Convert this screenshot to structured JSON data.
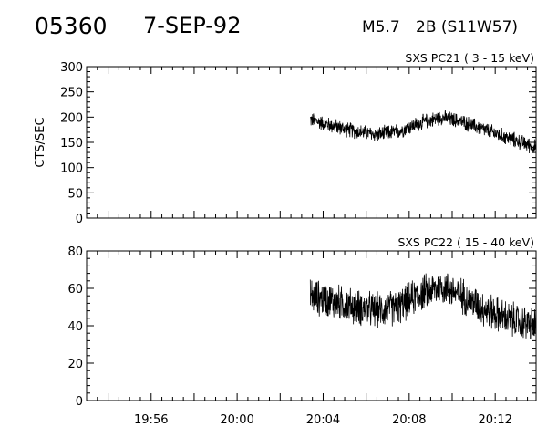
{
  "header": {
    "event_id": "05360",
    "date": "7-SEP-92",
    "goes_class": "M5.7",
    "flare": "2B (S11W57)"
  },
  "chart_data": [
    {
      "type": "line",
      "title": "SXS PC21  (  3 - 15 keV)",
      "ylabel": "CTS/SEC",
      "xlabel": "",
      "xlim": [
        "19:53",
        "20:13.9"
      ],
      "ylim": [
        0,
        300
      ],
      "yticks": [
        "0",
        "50",
        "100",
        "150",
        "200",
        "250",
        "300"
      ],
      "xticks": [],
      "series": [
        {
          "x": [
            "20:03.4",
            "20:04.5",
            "20:05.5",
            "20:06.5",
            "20:07.5",
            "20:08.5",
            "20:09.5",
            "20:10.5",
            "20:11.5",
            "20:12.5",
            "20:13.9"
          ],
          "y": [
            195,
            182,
            172,
            165,
            172,
            188,
            200,
            190,
            175,
            160,
            140
          ]
        }
      ]
    },
    {
      "type": "line",
      "title": "SXS PC22  ( 15 - 40 keV)",
      "ylabel": "",
      "xlabel": "",
      "xlim": [
        "19:53",
        "20:13.9"
      ],
      "ylim": [
        0,
        80
      ],
      "yticks": [
        "0",
        "20",
        "40",
        "60",
        "80"
      ],
      "xticks": [
        "19:56",
        "20:00",
        "20:04",
        "20:08",
        "20:12"
      ],
      "series": [
        {
          "x": [
            "20:03.4",
            "20:04.5",
            "20:05.5",
            "20:06.5",
            "20:07.5",
            "20:08.5",
            "20:09.5",
            "20:10.5",
            "20:11.5",
            "20:12.5",
            "20:13.9"
          ],
          "y": [
            56,
            53,
            50,
            48,
            50,
            57,
            61,
            56,
            49,
            44,
            40
          ]
        }
      ]
    }
  ]
}
